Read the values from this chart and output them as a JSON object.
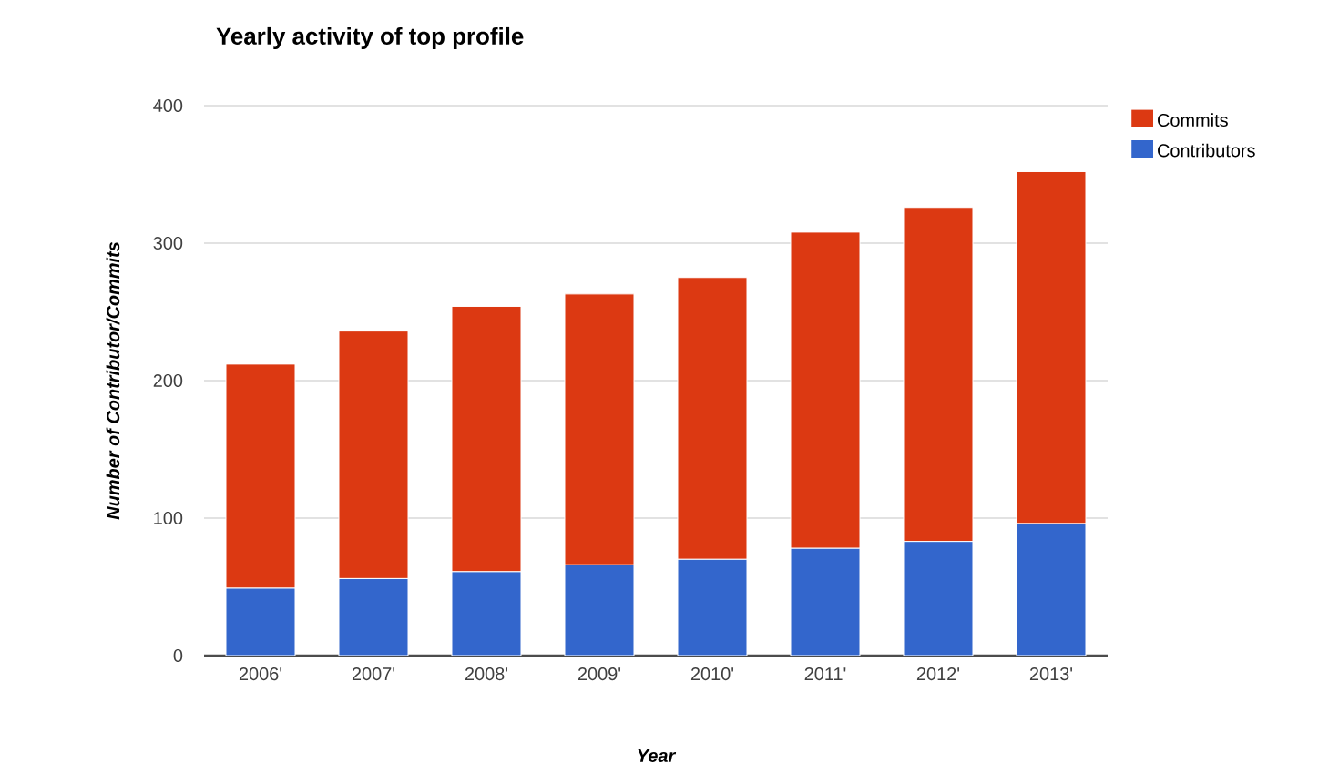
{
  "chart_data": {
    "type": "bar",
    "title": "Yearly activity of top profile",
    "xlabel": "Year",
    "ylabel": "Number of Contributor/Commits",
    "categories": [
      "2006'",
      "2007'",
      "2008'",
      "2009'",
      "2010'",
      "2011'",
      "2012'",
      "2013'"
    ],
    "series": [
      {
        "name": "Contributors",
        "color": "#3366cc",
        "values": [
          49,
          56,
          61,
          66,
          70,
          78,
          83,
          96
        ]
      },
      {
        "name": "Commits",
        "color": "#dc3912",
        "values": [
          163,
          180,
          193,
          197,
          205,
          230,
          243,
          256
        ]
      }
    ],
    "stacked": true,
    "ylim": [
      0,
      400
    ],
    "yticks": [
      0,
      100,
      200,
      300,
      400
    ],
    "grid": "y",
    "legend": "top right"
  }
}
